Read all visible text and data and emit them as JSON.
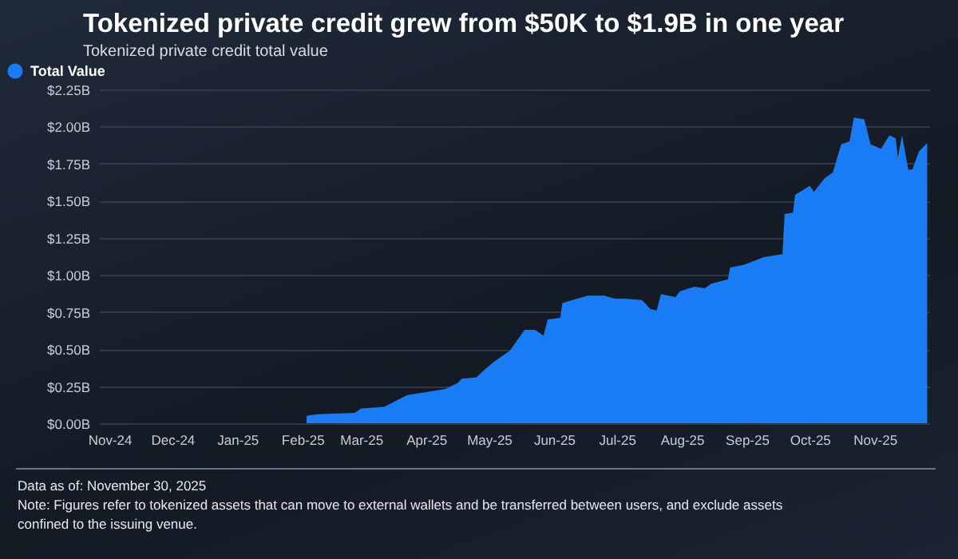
{
  "chart_data": {
    "type": "area",
    "title": "Tokenized private credit grew from $50K to $1.9B in one year",
    "subtitle": "Tokenized private credit total value",
    "legend": "left",
    "grid": "y",
    "x": [
      "2025-02-03",
      "2025-02-08",
      "2025-02-26",
      "2025-03-01",
      "2025-03-12",
      "2025-03-23",
      "2025-04-10",
      "2025-04-16",
      "2025-04-18",
      "2025-04-25",
      "2025-04-28",
      "2025-05-03",
      "2025-05-11",
      "2025-05-18",
      "2025-05-23",
      "2025-05-27",
      "2025-05-29",
      "2025-06-04",
      "2025-06-05",
      "2025-06-17",
      "2025-06-25",
      "2025-06-30",
      "2025-07-05",
      "2025-07-13",
      "2025-07-17",
      "2025-07-20",
      "2025-07-22",
      "2025-07-29",
      "2025-07-31",
      "2025-08-07",
      "2025-08-12",
      "2025-08-15",
      "2025-08-23",
      "2025-08-24",
      "2025-08-31",
      "2025-09-09",
      "2025-09-18",
      "2025-09-19",
      "2025-09-23",
      "2025-09-24",
      "2025-10-01",
      "2025-10-03",
      "2025-10-08",
      "2025-10-12",
      "2025-10-16",
      "2025-10-20",
      "2025-10-22",
      "2025-10-27",
      "2025-10-30",
      "2025-11-04",
      "2025-11-08",
      "2025-11-11",
      "2025-11-12",
      "2025-11-14",
      "2025-11-17",
      "2025-11-19",
      "2025-11-22",
      "2025-11-26"
    ],
    "series": [
      {
        "name": "Total Value",
        "color": "#1a7cf5",
        "values": [
          0.05,
          0.06,
          0.07,
          0.1,
          0.11,
          0.19,
          0.23,
          0.27,
          0.3,
          0.31,
          0.35,
          0.41,
          0.49,
          0.63,
          0.63,
          0.59,
          0.7,
          0.71,
          0.81,
          0.86,
          0.86,
          0.84,
          0.84,
          0.83,
          0.77,
          0.76,
          0.87,
          0.85,
          0.89,
          0.92,
          0.91,
          0.94,
          0.97,
          1.05,
          1.07,
          1.12,
          1.14,
          1.41,
          1.42,
          1.54,
          1.6,
          1.56,
          1.65,
          1.69,
          1.88,
          1.9,
          2.06,
          2.05,
          1.88,
          1.85,
          1.94,
          1.92,
          1.79,
          1.94,
          1.71,
          1.71,
          1.83,
          1.89
        ]
      }
    ],
    "xlim": [
      "2024-10-27",
      "2025-11-27"
    ],
    "xticks": [
      {
        "value": "2024-11-01",
        "label": "Nov-24"
      },
      {
        "value": "2024-12-01",
        "label": "Dec-24"
      },
      {
        "value": "2025-01-01",
        "label": "Jan-25"
      },
      {
        "value": "2025-02-01",
        "label": "Feb-25"
      },
      {
        "value": "2025-03-01",
        "label": "Mar-25"
      },
      {
        "value": "2025-04-01",
        "label": "Apr-25"
      },
      {
        "value": "2025-05-01",
        "label": "May-25"
      },
      {
        "value": "2025-06-01",
        "label": "Jun-25"
      },
      {
        "value": "2025-07-01",
        "label": "Jul-25"
      },
      {
        "value": "2025-08-01",
        "label": "Aug-25"
      },
      {
        "value": "2025-09-01",
        "label": "Sep-25"
      },
      {
        "value": "2025-10-01",
        "label": "Oct-25"
      },
      {
        "value": "2025-11-01",
        "label": "Nov-25"
      }
    ],
    "ylim": [
      0,
      2.25
    ],
    "yticks": [
      {
        "value": 0,
        "label": "$0.00B"
      },
      {
        "value": 0.25,
        "label": "$0.25B"
      },
      {
        "value": 0.5,
        "label": "$0.50B"
      },
      {
        "value": 0.75,
        "label": "$0.75B"
      },
      {
        "value": 1,
        "label": "$1.00B"
      },
      {
        "value": 1.25,
        "label": "$1.25B"
      },
      {
        "value": 1.5,
        "label": "$1.50B"
      },
      {
        "value": 1.75,
        "label": "$1.75B"
      },
      {
        "value": 2,
        "label": "$2.00B"
      },
      {
        "value": 2.25,
        "label": "$2.25B"
      }
    ],
    "annotations": [
      "Data as of: November 30, 2025",
      "Note: Figures refer to tokenized assets that can move to external wallets and be transferred between users, and exclude assets confined to the issuing venue."
    ]
  }
}
